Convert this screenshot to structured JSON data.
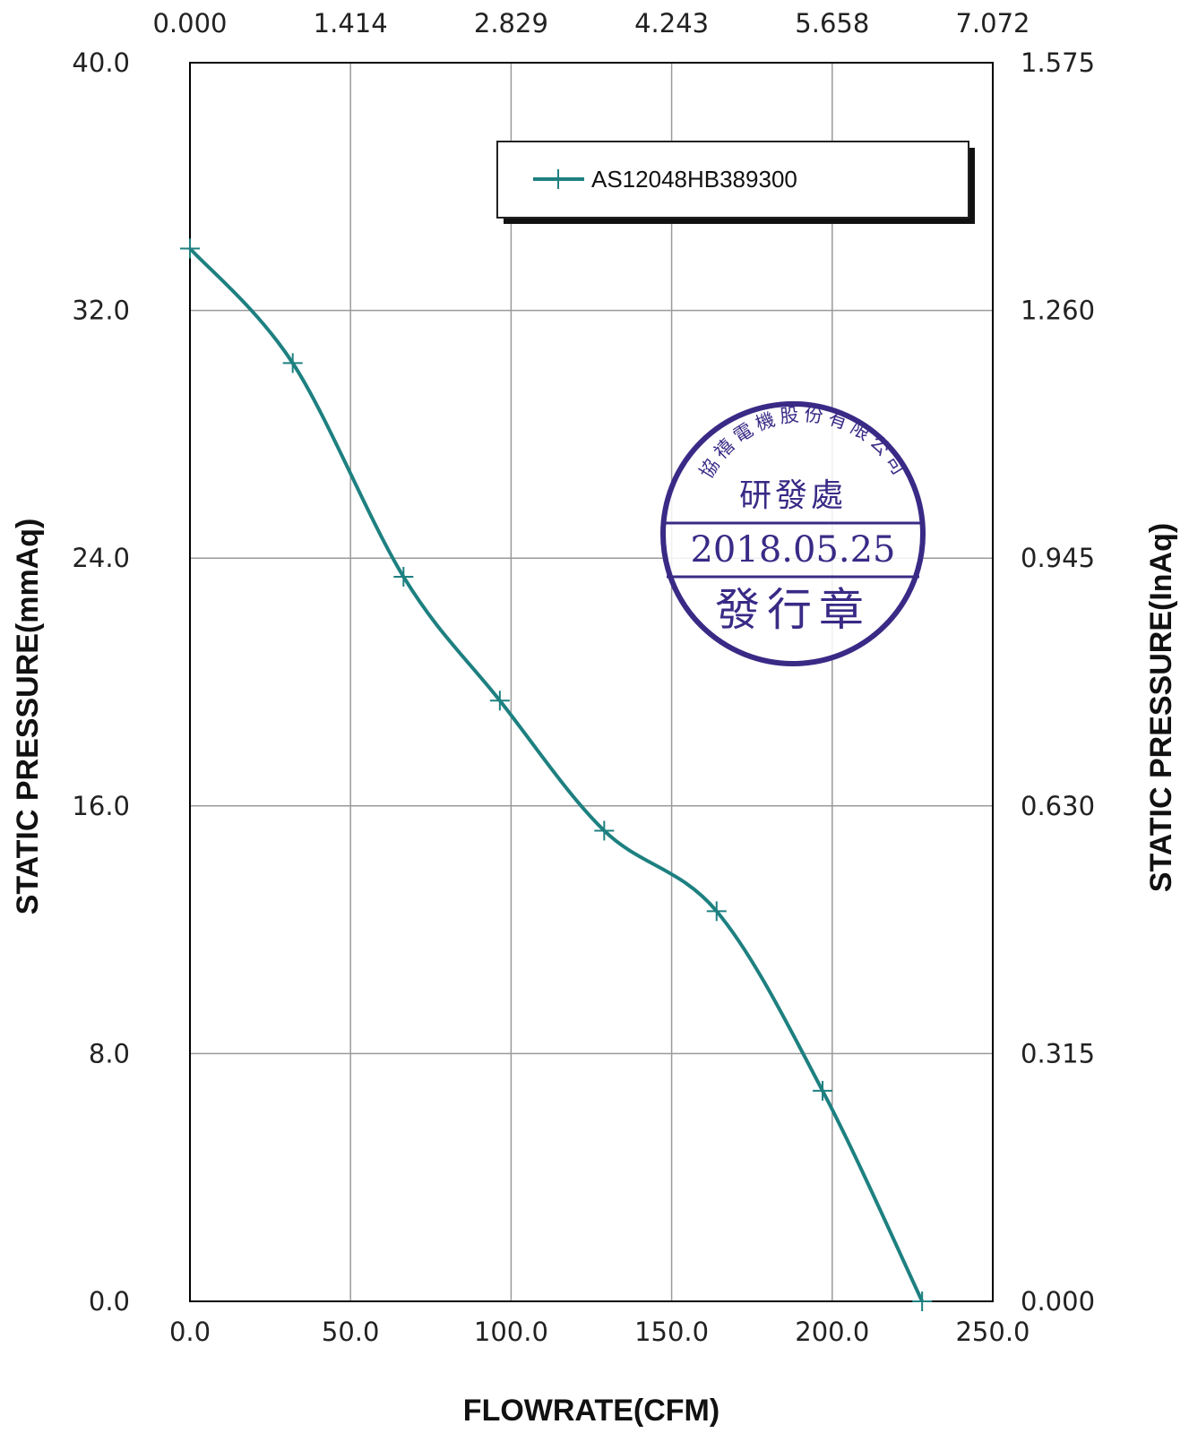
{
  "chart_data": {
    "type": "line",
    "xlabel": "FLOWRATE(CFM)",
    "ylabel": "STATIC PRESSURE(mmAq)",
    "ylabel_right": "STATIC PRESSURE(InAq)",
    "xlim": [
      0,
      250
    ],
    "ylim": [
      0,
      40
    ],
    "x_ticks": [
      "0.0",
      "50.0",
      "100.0",
      "150.0",
      "200.0",
      "250.0"
    ],
    "x_top_ticks": [
      "0.000",
      "1.414",
      "2.829",
      "4.243",
      "5.658",
      "7.072"
    ],
    "y_ticks": [
      "0.0",
      "8.0",
      "16.0",
      "24.0",
      "32.0",
      "40.0"
    ],
    "y_right_ticks": [
      "0.000",
      "0.315",
      "0.630",
      "0.945",
      "1.260",
      "1.575"
    ],
    "grid": true,
    "legend_position": "top-right",
    "series": [
      {
        "name": "AS12048HB389300",
        "color": "#1e8080",
        "x": [
          0.0,
          32.0,
          66.5,
          96.5,
          129.0,
          164.0,
          197.0,
          228.0
        ],
        "y": [
          34.0,
          30.3,
          23.4,
          19.4,
          15.2,
          12.6,
          6.8,
          0.0
        ]
      }
    ]
  },
  "stamp": {
    "company": "協禧電機股份有限公司",
    "department": "研發處",
    "date": "2018.05.25",
    "label": "發行章",
    "color": "#3a2a86"
  }
}
